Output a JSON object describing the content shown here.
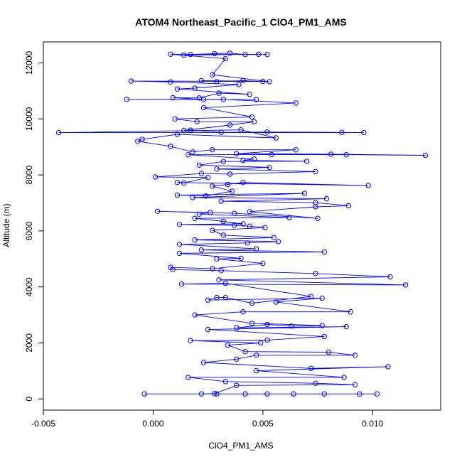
{
  "chart_data": {
    "type": "line",
    "title": "ATOM4 Northeast_Pacific_1 ClO4_PM1_AMS",
    "xlabel": "ClO4_PM1_AMS",
    "ylabel": "Altitude (m)",
    "xlim": [
      -0.005,
      0.0131
    ],
    "ylim": [
      -400,
      12750
    ],
    "xticks": [
      -0.005,
      0.0,
      0.005,
      0.01
    ],
    "xtick_labels": [
      "-0.005",
      "0.000",
      "0.005",
      "0.010"
    ],
    "yticks": [
      0,
      2000,
      4000,
      6000,
      8000,
      10000,
      12000
    ],
    "ytick_labels": [
      "0",
      "2000",
      "4000",
      "6000",
      "8000",
      "10000",
      "12000"
    ],
    "grid": false,
    "legend": "none",
    "series_color": "#0000ff",
    "series": [
      {
        "marker": "open-circle",
        "line": true,
        "points": [
          [
            -0.0004,
            180
          ],
          [
            0.0094,
            180
          ],
          [
            0.0102,
            180
          ],
          [
            0.0078,
            180
          ],
          [
            0.0064,
            180
          ],
          [
            0.0052,
            180
          ],
          [
            0.0042,
            180
          ],
          [
            0.0029,
            180
          ],
          [
            0.0022,
            180
          ],
          [
            0.0028,
            190
          ],
          [
            0.0038,
            480
          ],
          [
            0.0092,
            510
          ],
          [
            0.0074,
            560
          ],
          [
            0.0033,
            620
          ],
          [
            0.0016,
            770
          ],
          [
            0.0087,
            770
          ],
          [
            0.0047,
            1010
          ],
          [
            0.0107,
            1150
          ],
          [
            0.0072,
            1090
          ],
          [
            0.0023,
            1300
          ],
          [
            0.0038,
            1420
          ],
          [
            0.0047,
            1560
          ],
          [
            0.0092,
            1560
          ],
          [
            0.008,
            1670
          ],
          [
            0.0042,
            1690
          ],
          [
            0.0034,
            1920
          ],
          [
            0.0049,
            2000
          ],
          [
            0.0017,
            2080
          ],
          [
            0.0052,
            2100
          ],
          [
            0.0078,
            2230
          ],
          [
            0.0025,
            2480
          ],
          [
            0.0088,
            2580
          ],
          [
            0.0038,
            2540
          ],
          [
            0.0052,
            2660
          ],
          [
            0.0063,
            2600
          ],
          [
            0.0077,
            2620
          ],
          [
            0.0045,
            2700
          ],
          [
            0.0019,
            3000
          ],
          [
            0.0041,
            3110
          ],
          [
            0.009,
            3110
          ],
          [
            0.0056,
            3460
          ],
          [
            0.0077,
            3600
          ],
          [
            0.0025,
            3530
          ],
          [
            0.0029,
            3620
          ],
          [
            0.0033,
            3620
          ],
          [
            0.0045,
            3420
          ],
          [
            0.0072,
            3660
          ],
          [
            0.0033,
            4130
          ],
          [
            0.0013,
            4100
          ],
          [
            0.0115,
            4070
          ],
          [
            0.003,
            4250
          ],
          [
            0.0108,
            4360
          ],
          [
            0.0074,
            4480
          ],
          [
            0.0031,
            4580
          ],
          [
            0.0009,
            4620
          ],
          [
            0.0008,
            4700
          ],
          [
            0.0027,
            4650
          ],
          [
            0.005,
            4840
          ],
          [
            0.0029,
            5000
          ],
          [
            0.004,
            5020
          ],
          [
            0.0012,
            5200
          ],
          [
            0.0078,
            5250
          ],
          [
            0.0022,
            5320
          ],
          [
            0.0047,
            5360
          ],
          [
            0.0012,
            5520
          ],
          [
            0.0043,
            5570
          ],
          [
            0.0057,
            5620
          ],
          [
            0.0019,
            5680
          ],
          [
            0.0055,
            5760
          ],
          [
            0.0032,
            5850
          ],
          [
            0.0027,
            6020
          ],
          [
            0.0051,
            6120
          ],
          [
            0.0044,
            6170
          ],
          [
            0.0037,
            6200
          ],
          [
            0.0012,
            6230
          ],
          [
            0.0041,
            6250
          ],
          [
            0.0032,
            6340
          ],
          [
            0.0019,
            6450
          ],
          [
            0.0062,
            6480
          ],
          [
            0.0021,
            6600
          ],
          [
            0.0026,
            6660
          ],
          [
            0.0002,
            6700
          ],
          [
            0.0037,
            6630
          ],
          [
            0.0075,
            6450
          ],
          [
            0.0044,
            6690
          ],
          [
            0.0074,
            6860
          ],
          [
            0.0089,
            6900
          ],
          [
            0.0074,
            7010
          ],
          [
            0.0031,
            7060
          ],
          [
            0.0079,
            7150
          ],
          [
            0.0018,
            7190
          ],
          [
            0.0069,
            7340
          ],
          [
            0.0011,
            7280
          ],
          [
            0.0024,
            7250
          ],
          [
            0.0036,
            7420
          ],
          [
            0.0027,
            7600
          ],
          [
            0.0034,
            7660
          ],
          [
            0.0041,
            7730
          ],
          [
            0.0098,
            7620
          ],
          [
            0.0011,
            7730
          ],
          [
            0.0014,
            7710
          ],
          [
            0.0025,
            7910
          ],
          [
            0.0001,
            7930
          ],
          [
            0.0022,
            8050
          ],
          [
            0.0035,
            8030
          ],
          [
            0.0074,
            8120
          ],
          [
            0.0029,
            8210
          ],
          [
            0.0053,
            8270
          ],
          [
            0.0021,
            8350
          ],
          [
            0.0032,
            8480
          ],
          [
            0.007,
            8490
          ],
          [
            0.0041,
            8520
          ],
          [
            0.0046,
            8570
          ],
          [
            0.0016,
            8720
          ],
          [
            0.0054,
            8730
          ],
          [
            0.0088,
            8720
          ],
          [
            0.0124,
            8700
          ],
          [
            0.0081,
            8740
          ],
          [
            0.0038,
            8760
          ],
          [
            0.0065,
            8900
          ],
          [
            0.0027,
            8900
          ],
          [
            0.0018,
            8820
          ],
          [
            0.0008,
            9020
          ],
          [
            -0.0007,
            9200
          ],
          [
            -0.0005,
            9270
          ],
          [
            0.0011,
            9450
          ],
          [
            0.0056,
            9320
          ],
          [
            0.004,
            9610
          ],
          [
            -0.0043,
            9510
          ],
          [
            0.0096,
            9510
          ],
          [
            0.0086,
            9520
          ],
          [
            0.0052,
            9530
          ],
          [
            0.0031,
            9520
          ],
          [
            0.0017,
            9600
          ],
          [
            0.0014,
            9590
          ],
          [
            0.0035,
            9780
          ],
          [
            0.0046,
            9900
          ],
          [
            0.002,
            9900
          ],
          [
            0.001,
            10000
          ],
          [
            0.0045,
            10070
          ],
          [
            0.0023,
            10400
          ],
          [
            0.0065,
            10570
          ],
          [
            0.0032,
            10700
          ],
          [
            -0.0012,
            10700
          ],
          [
            0.0047,
            10690
          ],
          [
            0.0023,
            10690
          ],
          [
            0.0009,
            10760
          ],
          [
            0.0021,
            10750
          ],
          [
            0.003,
            10920
          ],
          [
            0.0044,
            10880
          ],
          [
            0.0011,
            11070
          ],
          [
            0.0019,
            11100
          ],
          [
            0.0039,
            11230
          ],
          [
            0.0008,
            11320
          ],
          [
            -0.001,
            11350
          ],
          [
            0.005,
            11340
          ],
          [
            0.0022,
            11370
          ],
          [
            0.0029,
            11330
          ],
          [
            0.0041,
            11370
          ],
          [
            0.0053,
            11330
          ],
          [
            0.0027,
            11580
          ],
          [
            0.0033,
            12150
          ],
          [
            0.0008,
            12310
          ],
          [
            0.0052,
            12300
          ],
          [
            0.0017,
            12300
          ],
          [
            0.0028,
            12330
          ],
          [
            0.0035,
            12350
          ],
          [
            0.0042,
            12300
          ],
          [
            0.0048,
            12310
          ],
          [
            0.0014,
            12280
          ]
        ]
      }
    ]
  }
}
